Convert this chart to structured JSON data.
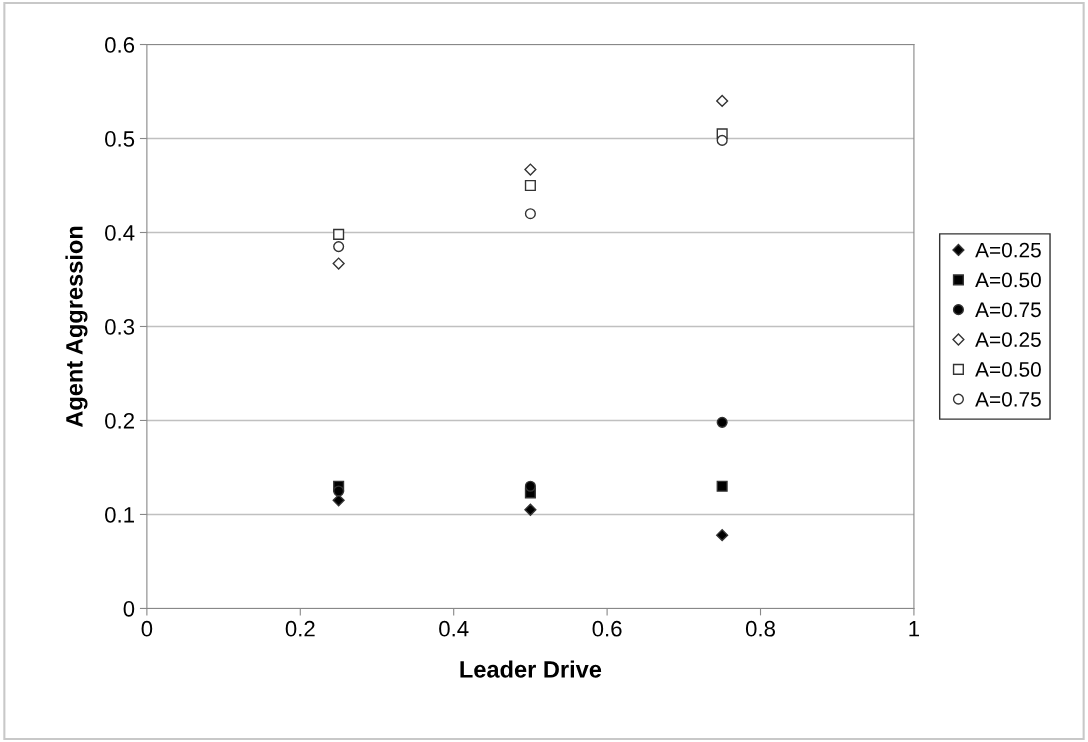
{
  "chart_data": {
    "type": "scatter",
    "xlabel": "Leader Drive",
    "ylabel": "Agent Aggression",
    "x": [
      0.25,
      0.5,
      0.75
    ],
    "series": [
      {
        "name": "A=0.25",
        "color": "#000000",
        "marker": "diamond",
        "values": [
          0.115,
          0.105,
          0.078
        ]
      },
      {
        "name": "A=0.50",
        "color": "#000000",
        "marker": "square",
        "values": [
          0.13,
          0.123,
          0.13
        ]
      },
      {
        "name": "A=0.75",
        "color": "#000000",
        "marker": "circle",
        "values": [
          0.125,
          0.13,
          0.198
        ]
      },
      {
        "name": "A=0.25",
        "color": "#ffffff",
        "marker": "diamond",
        "values": [
          0.367,
          0.467,
          0.54
        ]
      },
      {
        "name": "A=0.50",
        "color": "#ffffff",
        "marker": "square",
        "values": [
          0.398,
          0.45,
          0.505
        ]
      },
      {
        "name": "A=0.75",
        "color": "#ffffff",
        "marker": "circle",
        "values": [
          0.385,
          0.42,
          0.498
        ]
      }
    ],
    "xlim": [
      0,
      1
    ],
    "xticks": [
      0,
      0.2,
      0.4,
      0.6,
      0.8,
      1
    ],
    "ylim": [
      0,
      0.6
    ],
    "yticks": [
      0,
      0.1,
      0.2,
      0.3,
      0.4,
      0.5,
      0.6
    ],
    "grid": "y",
    "legend": "right"
  }
}
